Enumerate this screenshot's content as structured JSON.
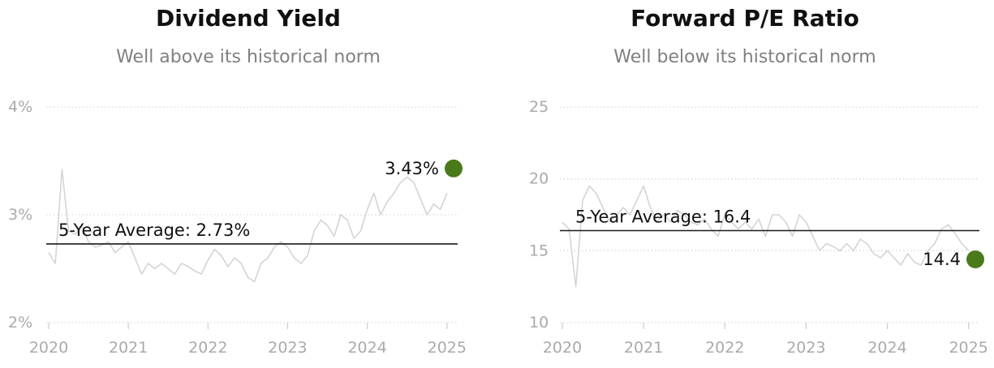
{
  "chart_data": [
    {
      "type": "line",
      "title": "Dividend Yield",
      "subtitle": "Well above its historical norm",
      "xlabel": "",
      "ylabel": "",
      "x_ticks": [
        "2020",
        "2021",
        "2022",
        "2023",
        "2024",
        "2025"
      ],
      "xlim": [
        "2020-01",
        "2025-02"
      ],
      "y_ticks": [
        "2%",
        "3%",
        "4%"
      ],
      "ylim": [
        2,
        4
      ],
      "unit": "%",
      "grid": "horizontal dotted",
      "series": [
        {
          "x": [
            "2020-01",
            "2020-02",
            "2020-03",
            "2020-04",
            "2020-05",
            "2020-06",
            "2020-07",
            "2020-08",
            "2020-09",
            "2020-10",
            "2020-11",
            "2020-12",
            "2021-01",
            "2021-02",
            "2021-03",
            "2021-04",
            "2021-05",
            "2021-06",
            "2021-07",
            "2021-08",
            "2021-09",
            "2021-10",
            "2021-11",
            "2021-12",
            "2022-01",
            "2022-02",
            "2022-03",
            "2022-04",
            "2022-05",
            "2022-06",
            "2022-07",
            "2022-08",
            "2022-09",
            "2022-10",
            "2022-11",
            "2022-12",
            "2023-01",
            "2023-02",
            "2023-03",
            "2023-04",
            "2023-05",
            "2023-06",
            "2023-07",
            "2023-08",
            "2023-09",
            "2023-10",
            "2023-11",
            "2023-12",
            "2024-01",
            "2024-02",
            "2024-03",
            "2024-04",
            "2024-05",
            "2024-06",
            "2024-07",
            "2024-08",
            "2024-09",
            "2024-10",
            "2024-11",
            "2024-12",
            "2025-01"
          ],
          "values": [
            2.65,
            2.55,
            3.42,
            2.85,
            2.82,
            2.9,
            2.75,
            2.7,
            2.72,
            2.75,
            2.65,
            2.7,
            2.75,
            2.6,
            2.45,
            2.55,
            2.5,
            2.55,
            2.5,
            2.45,
            2.55,
            2.52,
            2.48,
            2.45,
            2.58,
            2.68,
            2.62,
            2.52,
            2.6,
            2.55,
            2.42,
            2.38,
            2.55,
            2.6,
            2.7,
            2.75,
            2.7,
            2.6,
            2.55,
            2.62,
            2.85,
            2.95,
            2.9,
            2.8,
            3.0,
            2.95,
            2.78,
            2.85,
            3.05,
            3.2,
            3.0,
            3.12,
            3.2,
            3.3,
            3.35,
            3.3,
            3.15,
            3.0,
            3.1,
            3.05,
            3.2
          ],
          "color": "#d4d4d4"
        }
      ],
      "reference_line": {
        "label": "5-Year Average: 2.73%",
        "value": 2.73
      },
      "current": {
        "x": "2025-02",
        "value": 3.43,
        "label": "3.43%",
        "color": "#4a7a1a"
      }
    },
    {
      "type": "line",
      "title": "Forward P/E Ratio",
      "subtitle": "Well below its historical norm",
      "xlabel": "",
      "ylabel": "",
      "x_ticks": [
        "2020",
        "2021",
        "2022",
        "2023",
        "2024",
        "2025"
      ],
      "xlim": [
        "2020-01",
        "2025-02"
      ],
      "y_ticks": [
        "10",
        "15",
        "20",
        "25"
      ],
      "ylim": [
        10,
        25
      ],
      "unit": "",
      "grid": "horizontal dotted",
      "series": [
        {
          "x": [
            "2020-01",
            "2020-02",
            "2020-03",
            "2020-04",
            "2020-05",
            "2020-06",
            "2020-07",
            "2020-08",
            "2020-09",
            "2020-10",
            "2020-11",
            "2020-12",
            "2021-01",
            "2021-02",
            "2021-03",
            "2021-04",
            "2021-05",
            "2021-06",
            "2021-07",
            "2021-08",
            "2021-09",
            "2021-10",
            "2021-11",
            "2021-12",
            "2022-01",
            "2022-02",
            "2022-03",
            "2022-04",
            "2022-05",
            "2022-06",
            "2022-07",
            "2022-08",
            "2022-09",
            "2022-10",
            "2022-11",
            "2022-12",
            "2023-01",
            "2023-02",
            "2023-03",
            "2023-04",
            "2023-05",
            "2023-06",
            "2023-07",
            "2023-08",
            "2023-09",
            "2023-10",
            "2023-11",
            "2023-12",
            "2024-01",
            "2024-02",
            "2024-03",
            "2024-04",
            "2024-05",
            "2024-06",
            "2024-07",
            "2024-08",
            "2024-09",
            "2024-10",
            "2024-11",
            "2024-12",
            "2025-01"
          ],
          "values": [
            17.0,
            16.5,
            12.5,
            18.5,
            19.5,
            19.0,
            18.0,
            17.0,
            17.5,
            18.0,
            17.5,
            18.5,
            19.5,
            18.0,
            17.0,
            17.5,
            17.0,
            17.8,
            17.5,
            17.0,
            16.8,
            17.2,
            16.5,
            16.0,
            17.5,
            17.0,
            16.5,
            17.0,
            16.5,
            17.2,
            16.0,
            17.5,
            17.5,
            17.0,
            16.0,
            17.5,
            17.0,
            16.0,
            15.0,
            15.5,
            15.3,
            15.0,
            15.5,
            15.0,
            15.8,
            15.5,
            14.8,
            14.5,
            15.0,
            14.5,
            14.0,
            14.8,
            14.2,
            14.0,
            15.0,
            15.5,
            16.5,
            16.8,
            16.2,
            15.5,
            15.0
          ],
          "color": "#d4d4d4"
        }
      ],
      "reference_line": {
        "label": "5-Year Average: 16.4",
        "value": 16.4
      },
      "current": {
        "x": "2025-02",
        "value": 14.4,
        "label": "14.4",
        "color": "#4a7a1a"
      }
    }
  ]
}
